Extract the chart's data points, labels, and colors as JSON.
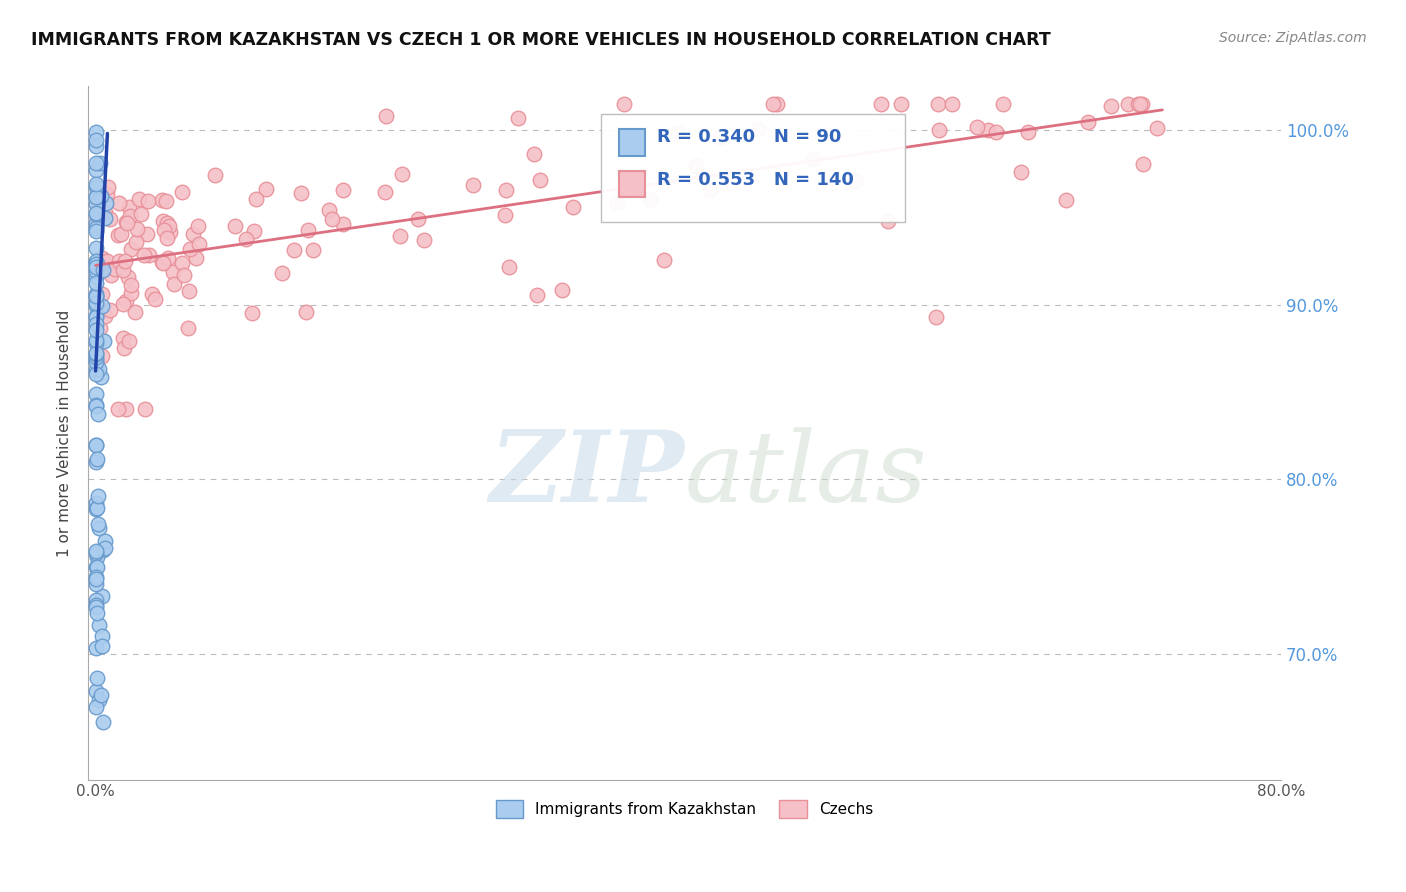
{
  "title": "IMMIGRANTS FROM KAZAKHSTAN VS CZECH 1 OR MORE VEHICLES IN HOUSEHOLD CORRELATION CHART",
  "source_text": "Source: ZipAtlas.com",
  "ylabel": "1 or more Vehicles in Household",
  "xmin": -0.005,
  "xmax": 0.8,
  "ymin": 0.628,
  "ymax": 1.025,
  "ytick_positions": [
    0.7,
    0.8,
    0.9,
    1.0
  ],
  "ytick_labels": [
    "70.0%",
    "80.0%",
    "90.0%",
    "100.0%"
  ],
  "blue_R": 0.34,
  "blue_N": 90,
  "pink_R": 0.553,
  "pink_N": 140,
  "blue_color": "#aaccee",
  "blue_edge": "#6699cc",
  "pink_color": "#f5c0c8",
  "pink_edge": "#e89098",
  "blue_line_color": "#2244aa",
  "pink_line_color": "#dd7080",
  "marker_size": 110,
  "watermark_zip": "ZIP",
  "watermark_atlas": "atlas",
  "legend_blue_label": "Immigrants from Kazakhstan",
  "legend_pink_label": "Czechs"
}
